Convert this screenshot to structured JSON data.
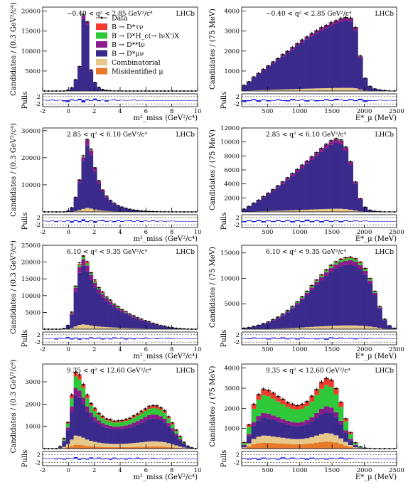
{
  "legend": {
    "entries": [
      {
        "label": "Data",
        "kind": "marker"
      },
      {
        "label": "B → D*τν",
        "color": "#f23a2f"
      },
      {
        "label": "B → D*H_c(→ lνX')X",
        "color": "#2fc83a"
      },
      {
        "label": "B → D**lν",
        "color": "#8b1a8b"
      },
      {
        "label": "B → D*μν",
        "color": "#3a2a8c"
      },
      {
        "label": "Combinatorial",
        "color": "#e6c88a"
      },
      {
        "label": "Misidentified μ",
        "color": "#e67a28"
      }
    ]
  },
  "chart_data": [
    {
      "type": "bar",
      "tag": "−0.40 < q² < 2.85 GeV²/c⁴",
      "brand": "LHCb",
      "ylabel": "Candidates / (0.3 GeV²/c⁴)",
      "xlabel": "m²_miss (GeV²/c⁴)",
      "pulls_label": "Pulls",
      "xlim": [
        -2,
        10
      ],
      "ylim": [
        0,
        21000
      ],
      "xticks": [
        -2,
        0,
        2,
        4,
        6,
        8,
        10
      ],
      "yticks": [
        5000,
        10000,
        15000,
        20000
      ],
      "bin_edges_start": -2,
      "bin_width": 0.3,
      "pull_ticks": [
        2,
        -2
      ],
      "total": [
        0,
        0,
        0,
        0,
        0,
        0,
        200,
        800,
        2800,
        6200,
        19000,
        17500,
        5200,
        2200,
        900,
        400,
        180,
        80,
        40,
        20,
        10,
        5,
        0,
        0,
        0,
        0,
        0,
        0,
        0,
        0,
        0,
        0,
        0,
        0,
        0,
        0,
        0,
        0,
        0,
        0
      ],
      "frac": {
        "misid": 0.0,
        "comb": 0.005,
        "dss": 0.04,
        "hc": 0.005,
        "tau": 0.003
      },
      "data": [
        0,
        0,
        0,
        0,
        0,
        0,
        220,
        820,
        2850,
        6150,
        19200,
        17300,
        5300,
        2150,
        920,
        380,
        170,
        90,
        40,
        20,
        10,
        5,
        0,
        0,
        0,
        0,
        0,
        0,
        0,
        0,
        0,
        0,
        0,
        0,
        0,
        0,
        0,
        0,
        0,
        0
      ],
      "pulls": [
        0.2,
        -0.1,
        0.4,
        -0.3,
        0.2,
        -0.6,
        -1.0,
        0.5,
        -0.3,
        0.8,
        -1.2,
        0.6,
        -0.4,
        0.9,
        -0.5,
        0.3,
        -0.7,
        0.2,
        0.4,
        -0.3,
        0.2,
        -0.1,
        0.1,
        0.3,
        -0.2,
        0.1,
        0,
        0,
        0,
        0,
        0,
        0,
        0,
        0,
        0,
        0,
        0,
        0,
        0,
        0
      ]
    },
    {
      "type": "bar",
      "tag": "−0.40 < q² < 2.85 GeV²/c⁴",
      "brand": "LHCb",
      "ylabel": "Candidates / (75 MeV)",
      "xlabel": "E*_μ (MeV)",
      "pulls_label": "Pulls",
      "xlim": [
        100,
        2500
      ],
      "ylim": [
        0,
        4200
      ],
      "xticks": [
        500,
        1000,
        1500,
        2000,
        2500
      ],
      "yticks": [
        1000,
        2000,
        3000,
        4000
      ],
      "bin_edges_start": 100,
      "bin_width": 75,
      "pull_ticks": [
        2,
        -2
      ],
      "total": [
        280,
        480,
        700,
        900,
        1080,
        1270,
        1450,
        1640,
        1820,
        2000,
        2180,
        2380,
        2550,
        2720,
        2880,
        3030,
        3170,
        3300,
        3420,
        3530,
        3630,
        3700,
        3650,
        3200,
        1750,
        650,
        230,
        120,
        60,
        30,
        10,
        5
      ],
      "frac": {
        "misid": 0.003,
        "comb": 0.04,
        "dss": 0.04,
        "hc": 0.004,
        "tau": 0.003
      },
      "data": [
        290,
        470,
        710,
        890,
        1090,
        1260,
        1460,
        1630,
        1830,
        1990,
        2190,
        2370,
        2560,
        2710,
        2890,
        3020,
        3180,
        3290,
        3430,
        3520,
        3640,
        3690,
        3660,
        3180,
        1760,
        640,
        240,
        110,
        60,
        30,
        10,
        5
      ],
      "pulls": [
        -1.0,
        -0.5,
        0.6,
        -0.8,
        0.4,
        -0.6,
        -0.3,
        0.5,
        -0.4,
        -0.6,
        0.7,
        -0.3,
        0.4,
        -0.7,
        0.3,
        -0.6,
        -0.4,
        0.6,
        -0.4,
        0.8,
        0.3,
        -0.4,
        0.6,
        -0.5,
        0.8,
        -0.9,
        -0.4,
        -0.3,
        0.2,
        -0.2,
        0.1,
        0
      ]
    },
    {
      "type": "bar",
      "tag": "2.85 < q² < 6.10 GeV²/c⁴",
      "brand": "LHCb",
      "ylabel": "Candidates / (0.3 GeV²/c⁴)",
      "xlabel": "m²_miss (GeV²/c⁴)",
      "pulls_label": "Pulls",
      "xlim": [
        -2,
        10
      ],
      "ylim": [
        0,
        31000
      ],
      "xticks": [
        -2,
        0,
        2,
        4,
        6,
        8,
        10
      ],
      "yticks": [
        10000,
        20000,
        30000
      ],
      "bin_edges_start": -2,
      "bin_width": 0.3,
      "pull_ticks": [
        2,
        -2
      ],
      "total": [
        0,
        0,
        0,
        0,
        0,
        0,
        300,
        1500,
        5500,
        12000,
        20500,
        27000,
        23000,
        16500,
        11500,
        8200,
        5800,
        4300,
        3200,
        2400,
        1800,
        1350,
        1000,
        750,
        550,
        400,
        300,
        220,
        160,
        120,
        80,
        50,
        30,
        20,
        10,
        0,
        0,
        0,
        0,
        0
      ],
      "frac": {
        "misid": 0.004,
        "comb": 0.05,
        "dss": 0.07,
        "hc": 0.01,
        "tau": 0.008
      },
      "data": [
        0,
        0,
        0,
        0,
        0,
        0,
        320,
        1550,
        5400,
        11800,
        20800,
        26800,
        23200,
        16300,
        11600,
        8100,
        5900,
        4250,
        3250,
        2350,
        1820,
        1330,
        1010,
        740,
        560,
        390,
        310,
        210,
        170,
        110,
        80,
        50,
        30,
        20,
        10,
        0,
        0,
        0,
        0,
        0
      ],
      "pulls": [
        0.2,
        -0.2,
        0.3,
        -0.5,
        0.2,
        -0.3,
        0.4,
        -0.8,
        0.6,
        -0.6,
        1.0,
        -0.5,
        0.4,
        -0.9,
        0.3,
        0.6,
        -0.4,
        0.3,
        -0.6,
        0.5,
        -0.4,
        0.3,
        0.5,
        -0.3,
        0.4,
        -0.5,
        0.3,
        -0.2,
        0.4,
        -0.3,
        0.2,
        -0.3,
        0.1,
        0.2,
        -0.1,
        0,
        0,
        0,
        0,
        0
      ]
    },
    {
      "type": "bar",
      "tag": "2.85 < q² < 6.10 GeV²/c⁴",
      "brand": "LHCb",
      "ylabel": "Candidates / (75 MeV)",
      "xlabel": "E*_μ (MeV)",
      "pulls_label": "Pulls",
      "xlim": [
        100,
        2500
      ],
      "ylim": [
        0,
        12000
      ],
      "xticks": [
        500,
        1000,
        1500,
        2000,
        2500
      ],
      "yticks": [
        2000,
        4000,
        6000,
        8000,
        10000,
        12000
      ],
      "bin_edges_start": 100,
      "bin_width": 75,
      "pull_ticks": [
        2,
        -2
      ],
      "total": [
        400,
        800,
        1250,
        1700,
        2200,
        2700,
        3200,
        3750,
        4300,
        4900,
        5500,
        6100,
        6700,
        7300,
        7900,
        8500,
        9100,
        9700,
        10200,
        10500,
        10300,
        9300,
        7200,
        4300,
        1900,
        700,
        250,
        100,
        50,
        20,
        10,
        0
      ],
      "frac": {
        "misid": 0.003,
        "comb": 0.04,
        "dss": 0.05,
        "hc": 0.006,
        "tau": 0.004
      },
      "data": [
        410,
        790,
        1260,
        1690,
        2210,
        2690,
        3210,
        3740,
        4310,
        4890,
        5510,
        6090,
        6710,
        7290,
        7910,
        8490,
        9110,
        9690,
        10210,
        10490,
        10310,
        9290,
        7210,
        4290,
        1910,
        690,
        260,
        100,
        50,
        20,
        10,
        0
      ],
      "pulls": [
        -0.6,
        0.5,
        -0.5,
        0.6,
        -0.7,
        0.4,
        -0.5,
        0.6,
        -0.4,
        0.5,
        -0.7,
        0.6,
        -0.5,
        0.8,
        -0.6,
        0.5,
        -0.7,
        0.6,
        -0.5,
        0.4,
        -0.6,
        0.5,
        -0.3,
        0.4,
        -0.2,
        0.3,
        0,
        0,
        0,
        0,
        0,
        0
      ]
    },
    {
      "type": "bar",
      "tag": "6.10 < q² < 9.35 GeV²/c⁴",
      "brand": "LHCb",
      "ylabel": "Candidates / (0.3 GeV²/c⁴)",
      "xlabel": "m²_miss (GeV²/c⁴)",
      "pulls_label": "Pulls",
      "xlim": [
        -2,
        10
      ],
      "ylim": [
        0,
        25000
      ],
      "xticks": [
        -2,
        0,
        2,
        4,
        6,
        8,
        10
      ],
      "yticks": [
        5000,
        10000,
        15000,
        20000,
        25000
      ],
      "bin_edges_start": -2,
      "bin_width": 0.3,
      "pull_ticks": [
        2,
        -2
      ],
      "total": [
        0,
        0,
        0,
        0,
        0,
        200,
        1200,
        5000,
        13000,
        19500,
        22000,
        20000,
        17000,
        14500,
        12500,
        11000,
        9700,
        8600,
        7600,
        6700,
        5900,
        5200,
        4600,
        4000,
        3500,
        3000,
        2600,
        2200,
        1800,
        1450,
        1150,
        900,
        650,
        450,
        300,
        200,
        120,
        60,
        20,
        0
      ],
      "frac": {
        "misid": 0.005,
        "comb": 0.06,
        "dss": 0.09,
        "hc": 0.03,
        "tau": 0.02
      },
      "data": [
        0,
        0,
        0,
        0,
        0,
        220,
        1150,
        5100,
        12800,
        19800,
        21800,
        20200,
        16800,
        14700,
        12400,
        11100,
        9600,
        8700,
        7500,
        6800,
        5850,
        5250,
        4550,
        4050,
        3450,
        3050,
        2550,
        2250,
        1780,
        1470,
        1130,
        920,
        640,
        460,
        290,
        210,
        110,
        60,
        20,
        0
      ],
      "pulls": [
        0.2,
        -0.3,
        0.1,
        -0.6,
        0.4,
        -0.3,
        0.8,
        -0.6,
        0.5,
        -0.7,
        0.4,
        -0.5,
        0.6,
        -0.4,
        0.5,
        -0.6,
        0.4,
        -0.5,
        0.6,
        -0.3,
        0.5,
        -0.6,
        0.4,
        -0.5,
        0.3,
        -0.4,
        0.5,
        -0.3,
        0.2,
        -0.4,
        0.3,
        -0.2,
        0.4,
        -0.3,
        0.2,
        -0.1,
        0.2,
        -0.1,
        0,
        0
      ]
    },
    {
      "type": "bar",
      "tag": "6.10 < q² < 9.35 GeV²/c⁴",
      "brand": "LHCb",
      "ylabel": "Candidates / (75 MeV)",
      "xlabel": "E*_μ (MeV)",
      "pulls_label": "Pulls",
      "xlim": [
        100,
        2500
      ],
      "ylim": [
        0,
        16500
      ],
      "xticks": [
        500,
        1000,
        1500,
        2000,
        2500
      ],
      "yticks": [
        5000,
        10000,
        15000
      ],
      "bin_edges_start": 100,
      "bin_width": 75,
      "pull_ticks": [
        2,
        -2
      ],
      "total": [
        200,
        350,
        550,
        800,
        1100,
        1450,
        1900,
        2400,
        3000,
        3700,
        4500,
        5400,
        6400,
        7500,
        8600,
        9700,
        10700,
        11700,
        12600,
        13300,
        13800,
        14100,
        14200,
        13900,
        13200,
        12000,
        10000,
        7500,
        4500,
        2000,
        700,
        200
      ],
      "frac": {
        "misid": 0.003,
        "comb": 0.05,
        "dss": 0.06,
        "hc": 0.03,
        "tau": 0.015
      },
      "data": [
        210,
        340,
        560,
        790,
        1110,
        1440,
        1910,
        2390,
        3010,
        3690,
        4510,
        5390,
        6410,
        7490,
        8610,
        9690,
        10710,
        11690,
        12610,
        13290,
        13810,
        14090,
        14210,
        13890,
        13210,
        11990,
        10010,
        7490,
        4510,
        1990,
        710,
        200
      ],
      "pulls": [
        0.3,
        -0.4,
        0.5,
        -0.3,
        0.4,
        -0.6,
        0.5,
        -0.4,
        0.6,
        -0.5,
        0.4,
        -0.6,
        0.5,
        -0.4,
        0.3,
        -0.5,
        0.4,
        -0.7,
        0.6,
        -0.4,
        0.5,
        -0.3,
        0.4,
        -0.5,
        0.3,
        -0.4,
        0.3,
        -0.2,
        0.3,
        -0.2,
        0.1,
        0
      ]
    },
    {
      "type": "bar",
      "tag": "9.35 < q² < 12.60 GeV²/c⁴",
      "brand": "LHCb",
      "ylabel": "Candidates / (0.3 GeV²/c⁴)",
      "xlabel": "m²_miss (GeV²/c⁴)",
      "pulls_label": "Pulls",
      "xlim": [
        -2,
        10
      ],
      "ylim": [
        0,
        3800
      ],
      "xticks": [
        -2,
        0,
        2,
        4,
        6,
        8,
        10
      ],
      "yticks": [
        1000,
        2000,
        3000
      ],
      "bin_edges_start": -2,
      "bin_width": 0.3,
      "pull_ticks": [
        2,
        -2
      ],
      "total": [
        0,
        0,
        0,
        0,
        100,
        450,
        1200,
        2400,
        3450,
        3300,
        2900,
        2400,
        2050,
        1800,
        1600,
        1450,
        1350,
        1300,
        1250,
        1250,
        1280,
        1320,
        1380,
        1470,
        1570,
        1680,
        1800,
        1900,
        1950,
        1920,
        1850,
        1700,
        1450,
        1150,
        850,
        550,
        300,
        120,
        40,
        0
      ],
      "frac": {
        "misid": 0.05,
        "comb": 0.12,
        "dss": 0.1,
        "hc": 0.15,
        "tau": 0.06
      },
      "data": [
        0,
        0,
        0,
        0,
        110,
        460,
        1180,
        2420,
        3420,
        3320,
        2880,
        2420,
        2030,
        1820,
        1590,
        1460,
        1340,
        1310,
        1240,
        1260,
        1270,
        1330,
        1370,
        1480,
        1560,
        1690,
        1790,
        1910,
        1940,
        1930,
        1840,
        1710,
        1440,
        1160,
        840,
        560,
        290,
        120,
        40,
        0
      ],
      "pulls": [
        0.2,
        -0.1,
        0.2,
        -0.4,
        0.3,
        -0.5,
        0.4,
        -0.3,
        0.7,
        -0.6,
        0.4,
        -0.5,
        0.6,
        -0.3,
        0.5,
        -0.4,
        0.3,
        -0.6,
        0.5,
        -0.4,
        0.3,
        -0.5,
        0.4,
        -0.3,
        0.5,
        -0.4,
        0.3,
        -0.2,
        0.4,
        -0.3,
        0.2,
        -0.4,
        0.3,
        -0.2,
        0.1,
        -0.2,
        0.1,
        0,
        0,
        0
      ]
    },
    {
      "type": "bar",
      "tag": "9.35 < q² < 12.60 GeV²/c⁴",
      "brand": "LHCb",
      "ylabel": "Candidates / (75 MeV)",
      "xlabel": "E*_μ (MeV)",
      "pulls_label": "Pulls",
      "xlim": [
        100,
        2500
      ],
      "ylim": [
        0,
        4200
      ],
      "xticks": [
        500,
        1000,
        1500,
        2000,
        2500
      ],
      "yticks": [
        1000,
        2000,
        3000,
        4000
      ],
      "bin_edges_start": 100,
      "bin_width": 75,
      "pull_ticks": [
        2,
        -2
      ],
      "total": [
        300,
        1200,
        2200,
        2700,
        2950,
        2900,
        2750,
        2600,
        2450,
        2300,
        2200,
        2150,
        2200,
        2350,
        2600,
        2950,
        3300,
        3500,
        3400,
        3000,
        2300,
        1500,
        800,
        300,
        100,
        30,
        10,
        0,
        0,
        0,
        0,
        0
      ],
      "frac": {
        "misid": 0.1,
        "comb": 0.12,
        "dss": 0.08,
        "hc": 0.3,
        "tau": 0.1
      },
      "data": [
        310,
        1190,
        2210,
        2690,
        2960,
        2890,
        2760,
        2590,
        2460,
        2290,
        2210,
        2140,
        2210,
        2340,
        2610,
        2940,
        3310,
        3490,
        3410,
        2990,
        2310,
        1490,
        810,
        300,
        100,
        30,
        10,
        0,
        0,
        0,
        0,
        0
      ],
      "pulls": [
        0.3,
        -0.5,
        0.4,
        -0.6,
        0.5,
        -0.4,
        0.3,
        -0.5,
        0.6,
        -0.4,
        0.5,
        -0.3,
        0.4,
        -0.6,
        0.5,
        -0.4,
        0.3,
        -0.5,
        0.4,
        -0.3,
        0.5,
        -0.4,
        0.3,
        -0.2,
        0.2,
        -0.1,
        0,
        0,
        0,
        0,
        0,
        0
      ]
    }
  ]
}
